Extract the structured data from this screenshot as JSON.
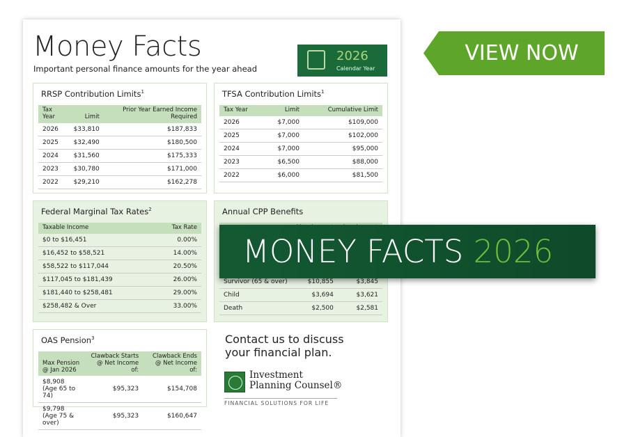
{
  "document": {
    "title": "Money Facts",
    "subtitle": "Important personal finance amounts for the year ahead",
    "calendar": {
      "year": "2026",
      "label": "Calendar Year",
      "icon": "calendar-icon"
    },
    "rrsp": {
      "title": "RRSP Contribution Limits",
      "note": "1",
      "headers": [
        "Tax Year",
        "Limit",
        "Prior Year Earned Income Required"
      ],
      "rows": [
        [
          "2026",
          "$33,810",
          "$187,833"
        ],
        [
          "2025",
          "$32,490",
          "$180,500"
        ],
        [
          "2024",
          "$31,560",
          "$175,333"
        ],
        [
          "2023",
          "$30,780",
          "$171,000"
        ],
        [
          "2022",
          "$29,210",
          "$162,278"
        ]
      ]
    },
    "tfsa": {
      "title": "TFSA Contribution Limits",
      "note": "1",
      "headers": [
        "Tax Year",
        "Limit",
        "Cumulative Limit"
      ],
      "rows": [
        [
          "2026",
          "$7,000",
          "$109,000"
        ],
        [
          "2025",
          "$7,000",
          "$102,000"
        ],
        [
          "2024",
          "$7,000",
          "$95,000"
        ],
        [
          "2023",
          "$6,500",
          "$88,000"
        ],
        [
          "2022",
          "$6,000",
          "$81,500"
        ]
      ]
    },
    "federal": {
      "title": "Federal Marginal Tax Rates",
      "note": "2",
      "headers": [
        "Taxable Income",
        "Tax Rate"
      ],
      "rows": [
        [
          "$0 to $16,451",
          "0.00%"
        ],
        [
          "$16,452 to $58,521",
          "14.00%"
        ],
        [
          "$58,522 to $117,044",
          "20.50%"
        ],
        [
          "$117,045 to $181,439",
          "26.00%"
        ],
        [
          "$181,440  to $258,481",
          "29.00%"
        ],
        [
          "$258,482 & Over",
          "33.00%"
        ]
      ]
    },
    "cpp": {
      "title": "Annual CPP Benefits",
      "headers": [
        "",
        "Max Amount",
        "Avg Amount"
      ],
      "rows": [
        [
          "Survivor (65 & over)",
          "$10,855",
          "$3,845"
        ],
        [
          "Child",
          "$3,694",
          "$3,621"
        ],
        [
          "Death",
          "$2,500",
          "$2,581"
        ]
      ]
    },
    "oas": {
      "title": "OAS Pension",
      "note": "3",
      "headers": [
        "Max Pension @ Jan 2026",
        "Clawback Starts @ Net Income of:",
        "Clawback Ends @ Net Income of:"
      ],
      "rows": [
        [
          "$8,908 (Age 65 to 74)",
          "$95,323",
          "$154,708"
        ],
        [
          "$9,798 (Age 75 & over)",
          "$95,323",
          "$160,647"
        ]
      ]
    },
    "contact": "Contact us to discuss your financial plan.",
    "logo": {
      "name_line1": "Investment",
      "name_line2": "Planning Counsel®",
      "tagline": "FINANCIAL SOLUTIONS FOR LIFE"
    }
  },
  "view_now": "VIEW NOW",
  "banner": {
    "text": "MONEY FACTS",
    "year": "2026"
  },
  "colors": {
    "green_dark": "#135a33",
    "green_light": "#5ea62a",
    "accent_year": "#6bbf3a"
  }
}
